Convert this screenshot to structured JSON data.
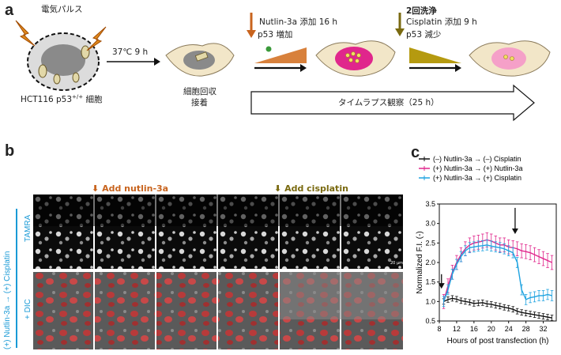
{
  "panel_a": {
    "label": "a",
    "electroporation_label": "電気パルス",
    "cell_line_label": "HCT116 p53",
    "cell_line_superscript": "+/+",
    "cell_line_suffix": " 細胞",
    "incubation_label": "37℃ 9 h",
    "harvest_label_line1": "細胞回収",
    "harvest_label_line2": "接着",
    "nutlin_label_line1": "Nutlin-3a 添加 16 h",
    "nutlin_label_line2": "p53 増加",
    "wash_label": "2回洗浄",
    "cisplatin_label_line1": "Cisplatin 添加 9 h",
    "cisplatin_label_line2": "p53 減少",
    "timelapse_label": "タイムラプス観察（25 h）"
  },
  "panel_b": {
    "label": "b",
    "add_nutlin_label": "Add nutlin-3a",
    "add_cisplatin_label": "Add cisplatin",
    "condition_label": "(+) Nutlin-3a → (+) Cisplatin",
    "row1_label": "TAMRA",
    "row2_label": "+ DIC",
    "frame_count": 6,
    "scale_bar_text": "20 µm"
  },
  "panel_c": {
    "label": "c"
  },
  "colors": {
    "nutlin_arrow": "#c8641e",
    "cisplatin_arrow": "#7a6a10",
    "series_black": "#111111",
    "series_magenta": "#e0268c",
    "series_cyan": "#1fa3e0",
    "cell_pink": "#f5a0c8",
    "condition_blue": "#1a9ad6"
  },
  "chart_data": {
    "type": "line",
    "xlabel": "Hours of post transfection (h)",
    "ylabel": "Normalized F.I. (-)",
    "xlim": [
      8,
      35
    ],
    "ylim": [
      0.5,
      3.5
    ],
    "xticks": [
      8,
      12,
      16,
      20,
      24,
      28,
      32
    ],
    "yticks": [
      0.5,
      1.0,
      1.5,
      2.0,
      2.5,
      3.0,
      3.5
    ],
    "legend_position": "top",
    "series": [
      {
        "name": "(–) Nutlin-3a → (–) Cisplatin",
        "color_key": "series_black",
        "x": [
          9,
          10,
          11,
          12,
          13,
          14,
          15,
          16,
          17,
          18,
          19,
          20,
          21,
          22,
          23,
          24,
          25,
          26,
          27,
          28,
          29,
          30,
          31,
          32,
          33,
          34
        ],
        "y": [
          1.0,
          1.05,
          1.08,
          1.06,
          1.02,
          1.0,
          0.98,
          0.95,
          0.96,
          0.97,
          0.94,
          0.93,
          0.9,
          0.88,
          0.85,
          0.83,
          0.8,
          0.75,
          0.72,
          0.7,
          0.68,
          0.66,
          0.64,
          0.62,
          0.6,
          0.58
        ],
        "err": 0.07
      },
      {
        "name": "(+) Nutlin-3a → (+) Nutlin-3a",
        "color_key": "series_magenta",
        "x": [
          9,
          10,
          11,
          12,
          13,
          14,
          15,
          16,
          17,
          18,
          19,
          20,
          21,
          22,
          23,
          24,
          25,
          26,
          27,
          28,
          29,
          30,
          31,
          32,
          33,
          34
        ],
        "y": [
          1.0,
          1.4,
          1.75,
          2.0,
          2.2,
          2.35,
          2.45,
          2.5,
          2.52,
          2.55,
          2.58,
          2.55,
          2.5,
          2.45,
          2.45,
          2.4,
          2.38,
          2.35,
          2.3,
          2.28,
          2.25,
          2.2,
          2.15,
          2.1,
          2.05,
          2.0
        ],
        "err": 0.18
      },
      {
        "name": "(+) Nutlin-3a → (+) Cisplatin",
        "color_key": "series_cyan",
        "x": [
          9,
          10,
          11,
          12,
          13,
          14,
          15,
          16,
          17,
          18,
          19,
          20,
          21,
          22,
          23,
          24,
          25,
          26,
          27,
          28,
          29,
          30,
          31,
          32,
          33,
          34
        ],
        "y": [
          1.0,
          1.3,
          1.7,
          1.95,
          2.15,
          2.3,
          2.38,
          2.4,
          2.42,
          2.43,
          2.45,
          2.42,
          2.4,
          2.38,
          2.35,
          2.3,
          2.25,
          2.0,
          1.3,
          1.05,
          1.1,
          1.12,
          1.15,
          1.15,
          1.18,
          1.15
        ],
        "err": 0.13
      }
    ],
    "annotation_arrows_x": [
      8.5,
      25.5
    ]
  }
}
